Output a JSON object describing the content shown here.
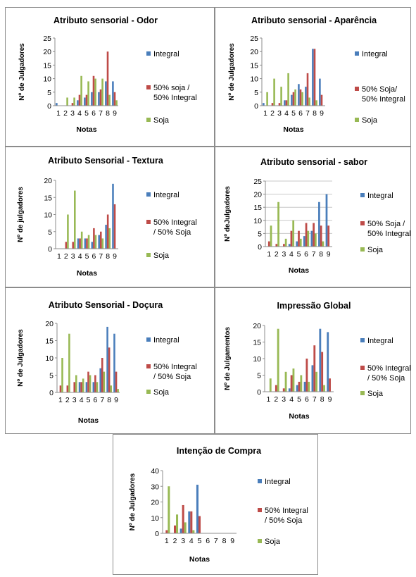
{
  "colors": {
    "integral": "#4A7EBB",
    "mix": "#BE4B48",
    "soja": "#98B954"
  },
  "chart_data": [
    {
      "type": "bar",
      "title": "Atributo sensorial - Odor",
      "xlabel": "Notas",
      "ylabel": "Nº de Julgadores",
      "ylim": [
        0,
        25
      ],
      "yticks": [
        "0",
        "5",
        "10",
        "15",
        "20",
        "25"
      ],
      "categories": [
        "1",
        "2",
        "3",
        "4",
        "5",
        "6",
        "7",
        "8",
        "9"
      ],
      "grid": false,
      "series": [
        {
          "name": "Integral",
          "values": [
            1,
            0,
            0,
            2,
            3,
            5,
            5,
            9,
            9
          ]
        },
        {
          "name": "50% soja / 50% Integral",
          "values": [
            0,
            0,
            1,
            4,
            4,
            11,
            6,
            20,
            5
          ]
        },
        {
          "name": "Soja",
          "values": [
            0,
            3,
            3,
            11,
            9,
            10,
            10,
            4,
            2
          ]
        }
      ],
      "legend_lines": [
        [
          "Integral"
        ],
        [
          "50% soja /",
          "50% Integral"
        ],
        [
          "Soja"
        ]
      ]
    },
    {
      "type": "bar",
      "title": "Atributo sensorial - Aparência",
      "xlabel": "Notas",
      "ylabel": "Nº de Julgadores",
      "ylim": [
        0,
        25
      ],
      "yticks": [
        "0",
        "5",
        "10",
        "15",
        "20",
        "25"
      ],
      "categories": [
        "1",
        "2",
        "3",
        "4",
        "5",
        "6",
        "7",
        "8",
        "9"
      ],
      "grid": false,
      "series": [
        {
          "name": "Integral",
          "values": [
            1,
            0,
            0,
            2,
            4,
            8,
            7,
            21,
            10
          ]
        },
        {
          "name": "50% Soja/ 50% Integral",
          "values": [
            0,
            1,
            1,
            2,
            5,
            6,
            12,
            21,
            4
          ]
        },
        {
          "name": "Soja",
          "values": [
            5,
            10,
            7,
            12,
            6,
            5,
            3,
            2,
            0
          ]
        }
      ],
      "legend_lines": [
        [
          "Integral"
        ],
        [
          "50% Soja/",
          "50% Integral"
        ],
        [
          "Soja"
        ]
      ]
    },
    {
      "type": "bar",
      "title": "Atributo Sensorial - Textura",
      "xlabel": "Notas",
      "ylabel": "Nº de julgadores",
      "ylim": [
        0,
        20
      ],
      "yticks": [
        "0",
        "5",
        "10",
        "15",
        "20"
      ],
      "categories": [
        "1",
        "2",
        "3",
        "4",
        "5",
        "6",
        "7",
        "8",
        "9"
      ],
      "grid": false,
      "series": [
        {
          "name": "Integral",
          "values": [
            0,
            0,
            0,
            3,
            3,
            2,
            4,
            7,
            19
          ]
        },
        {
          "name": "50% Integral / 50% Soja",
          "values": [
            0,
            2,
            2,
            3,
            3,
            6,
            5,
            10,
            13
          ]
        },
        {
          "name": "Soja",
          "values": [
            0,
            10,
            17,
            5,
            4,
            4,
            3,
            6,
            0
          ]
        }
      ],
      "legend_lines": [
        [
          "Integral"
        ],
        [
          "50% Integral",
          "/ 50% Soja"
        ],
        [
          "Soja"
        ]
      ]
    },
    {
      "type": "bar",
      "title": "Atributo sensorial - sabor",
      "xlabel": "Notas",
      "ylabel": "Nº deJulgadores",
      "ylim": [
        0,
        25
      ],
      "yticks": [
        "0",
        "5",
        "10",
        "15",
        "20",
        "25"
      ],
      "categories": [
        "1",
        "2",
        "3",
        "4",
        "5",
        "6",
        "7",
        "8",
        "9"
      ],
      "grid": true,
      "series": [
        {
          "name": "Integral",
          "values": [
            0,
            0,
            0,
            1,
            2,
            4,
            6,
            17,
            20
          ]
        },
        {
          "name": "50% Soja / 50% Integral",
          "values": [
            2,
            1,
            1,
            6,
            6,
            9,
            9,
            8,
            8
          ]
        },
        {
          "name": "Soja",
          "values": [
            8,
            17,
            3,
            10,
            3,
            6,
            5,
            2,
            0
          ]
        }
      ],
      "legend_lines": [
        [
          "Integral"
        ],
        [
          "50% Soja /",
          "50% Integral"
        ],
        [
          "Soja"
        ]
      ]
    },
    {
      "type": "bar",
      "title": "Atributo Sensorial - Doçura",
      "xlabel": "Notas",
      "ylabel": "Nº de Julgadores",
      "ylim": [
        0,
        20
      ],
      "yticks": [
        "0",
        "5",
        "10",
        "15",
        "20"
      ],
      "categories": [
        "1",
        "2",
        "3",
        "4",
        "5",
        "6",
        "7",
        "8",
        "9"
      ],
      "grid": false,
      "series": [
        {
          "name": "Integral",
          "values": [
            0,
            0,
            0,
            3,
            3,
            3,
            7,
            19,
            17
          ]
        },
        {
          "name": "50% Integral / 50% Soja",
          "values": [
            2,
            2,
            3,
            3,
            6,
            5,
            10,
            13,
            6
          ]
        },
        {
          "name": "Soja",
          "values": [
            10,
            17,
            5,
            4,
            5,
            3,
            6,
            2,
            1
          ]
        }
      ],
      "legend_lines": [
        [
          "Integral"
        ],
        [
          "50% Integral",
          "/ 50% Soja"
        ],
        [
          "Soja"
        ]
      ]
    },
    {
      "type": "bar",
      "title": "Impressão Global",
      "xlabel": "Notas",
      "ylabel": "Nº de Julgamentos",
      "ylim": [
        0,
        20
      ],
      "yticks": [
        "0",
        "5",
        "10",
        "15",
        "20"
      ],
      "categories": [
        "1",
        "2",
        "3",
        "4",
        "5",
        "6",
        "7",
        "8",
        "9"
      ],
      "grid": false,
      "series": [
        {
          "name": "Integral",
          "values": [
            0,
            0,
            0,
            1,
            2,
            3,
            8,
            19,
            18
          ]
        },
        {
          "name": "50% Integral / 50% Soja",
          "values": [
            0,
            2,
            1,
            5,
            3,
            10,
            14,
            12,
            4
          ]
        },
        {
          "name": "Soja",
          "values": [
            4,
            19,
            6,
            7,
            5,
            3,
            6,
            2,
            0
          ]
        }
      ],
      "legend_lines": [
        [
          "Integral"
        ],
        [
          "50% Integral",
          "/ 50% Soja"
        ],
        [
          "Soja"
        ]
      ]
    },
    {
      "type": "bar",
      "title": "Intenção de Compra",
      "xlabel": "Notas",
      "ylabel": "Nº de Julgadores",
      "ylim": [
        0,
        40
      ],
      "yticks": [
        "0",
        "10",
        "20",
        "30",
        "40"
      ],
      "categories": [
        "1",
        "2",
        "3",
        "4",
        "5",
        "6",
        "7",
        "8",
        "9"
      ],
      "grid": false,
      "series": [
        {
          "name": "Integral",
          "values": [
            0,
            0,
            3,
            14,
            31,
            0,
            0,
            0,
            0
          ]
        },
        {
          "name": "50% Integral / 50% Soja",
          "values": [
            2,
            5,
            18,
            14,
            11,
            0,
            0,
            0,
            0
          ]
        },
        {
          "name": "Soja",
          "values": [
            30,
            12,
            7,
            2,
            0,
            0,
            0,
            0,
            0
          ]
        }
      ],
      "legend_lines": [
        [
          "Integral"
        ],
        [
          "50% Integral",
          "/ 50% Soja"
        ],
        [
          "Soja"
        ]
      ]
    }
  ]
}
